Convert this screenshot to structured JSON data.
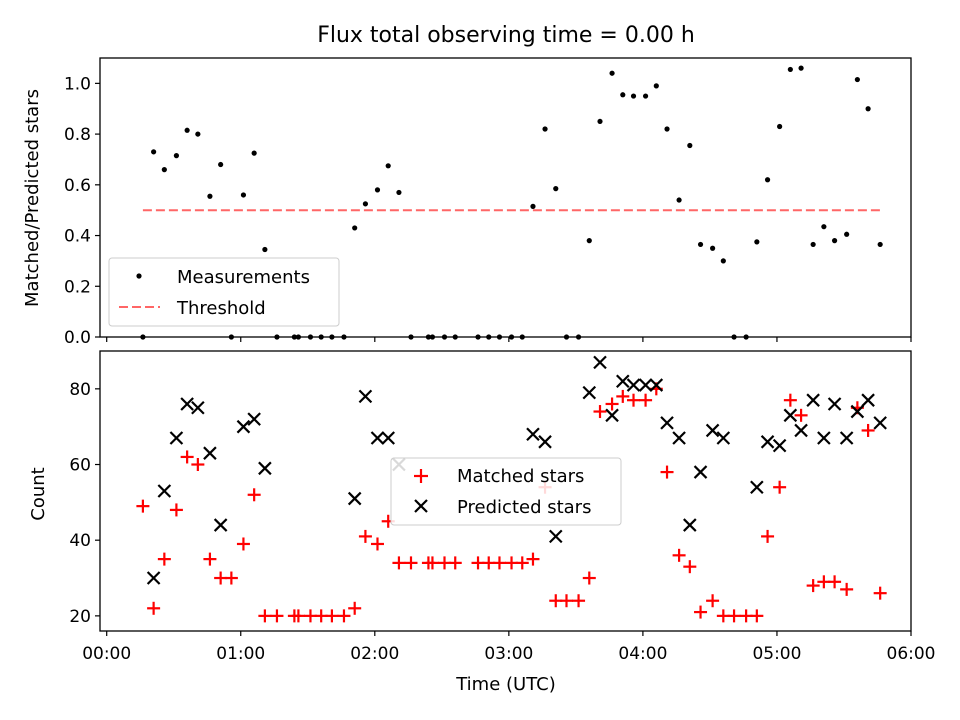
{
  "chart_data": [
    {
      "type": "scatter",
      "title": "Flux total observing time = 0.00 h",
      "xlabel": "",
      "ylabel": "Matched/Predicted stars",
      "xlim": [
        -0.05,
        6.0
      ],
      "ylim": [
        0,
        1.1
      ],
      "x_ticks": [
        0,
        1,
        2,
        3,
        4,
        5,
        6
      ],
      "y_ticks": [
        0.0,
        0.2,
        0.4,
        0.6,
        0.8,
        1.0
      ],
      "y_tick_labels": [
        "0.0",
        "0.2",
        "0.4",
        "0.6",
        "0.8",
        "1.0"
      ],
      "legend": {
        "position": "lower-left",
        "entries": [
          "Measurements",
          "Threshold"
        ]
      },
      "series": [
        {
          "name": "Measurements",
          "style": "dot",
          "color": "#000000",
          "points": [
            [
              0.27,
              0.0
            ],
            [
              0.35,
              0.73
            ],
            [
              0.43,
              0.66
            ],
            [
              0.52,
              0.715
            ],
            [
              0.6,
              0.815
            ],
            [
              0.68,
              0.8
            ],
            [
              0.77,
              0.555
            ],
            [
              0.85,
              0.68
            ],
            [
              0.93,
              0.0
            ],
            [
              1.02,
              0.56
            ],
            [
              1.1,
              0.725
            ],
            [
              1.18,
              0.345
            ],
            [
              1.27,
              0.0
            ],
            [
              1.4,
              0.0
            ],
            [
              1.43,
              0.0
            ],
            [
              1.52,
              0.0
            ],
            [
              1.6,
              0.0
            ],
            [
              1.68,
              0.0
            ],
            [
              1.77,
              0.0
            ],
            [
              1.85,
              0.43
            ],
            [
              1.93,
              0.525
            ],
            [
              2.02,
              0.58
            ],
            [
              2.1,
              0.675
            ],
            [
              2.18,
              0.57
            ],
            [
              2.27,
              0.0
            ],
            [
              2.4,
              0.0
            ],
            [
              2.43,
              0.0
            ],
            [
              2.52,
              0.0
            ],
            [
              2.6,
              0.0
            ],
            [
              2.77,
              0.0
            ],
            [
              2.85,
              0.0
            ],
            [
              2.93,
              0.0
            ],
            [
              3.02,
              0.0
            ],
            [
              3.1,
              0.0
            ],
            [
              3.18,
              0.515
            ],
            [
              3.27,
              0.82
            ],
            [
              3.35,
              0.585
            ],
            [
              3.43,
              0.0
            ],
            [
              3.52,
              0.0
            ],
            [
              3.6,
              0.38
            ],
            [
              3.68,
              0.85
            ],
            [
              3.77,
              1.04
            ],
            [
              3.85,
              0.955
            ],
            [
              3.93,
              0.95
            ],
            [
              4.02,
              0.95
            ],
            [
              4.1,
              0.99
            ],
            [
              4.18,
              0.82
            ],
            [
              4.27,
              0.54
            ],
            [
              4.35,
              0.755
            ],
            [
              4.43,
              0.365
            ],
            [
              4.52,
              0.35
            ],
            [
              4.6,
              0.3
            ],
            [
              4.68,
              0.0
            ],
            [
              4.77,
              0.0
            ],
            [
              4.85,
              0.375
            ],
            [
              4.93,
              0.62
            ],
            [
              5.02,
              0.83
            ],
            [
              5.1,
              1.055
            ],
            [
              5.18,
              1.06
            ],
            [
              5.27,
              0.365
            ],
            [
              5.35,
              0.435
            ],
            [
              5.43,
              0.38
            ],
            [
              5.52,
              0.405
            ],
            [
              5.6,
              1.015
            ],
            [
              5.68,
              0.9
            ],
            [
              5.77,
              0.365
            ]
          ]
        },
        {
          "name": "Threshold",
          "style": "dashed-line",
          "color": "#ff6666",
          "points": [
            [
              0.27,
              0.5
            ],
            [
              5.77,
              0.5
            ]
          ]
        }
      ]
    },
    {
      "type": "scatter",
      "title": "",
      "xlabel": "Time (UTC)",
      "ylabel": "Count",
      "xlim": [
        -0.05,
        6.0
      ],
      "ylim": [
        16,
        90
      ],
      "x_ticks": [
        0,
        1,
        2,
        3,
        4,
        5,
        6
      ],
      "x_tick_labels": [
        "00:00",
        "01:00",
        "02:00",
        "03:00",
        "04:00",
        "05:00",
        "06:00"
      ],
      "y_ticks": [
        20,
        40,
        60,
        80
      ],
      "y_tick_labels": [
        "20",
        "40",
        "60",
        "80"
      ],
      "legend": {
        "position": "center",
        "entries": [
          "Matched stars",
          "Predicted stars"
        ]
      },
      "series": [
        {
          "name": "Matched stars",
          "style": "plus",
          "color": "#ff0000",
          "points": [
            [
              0.27,
              49
            ],
            [
              0.35,
              22
            ],
            [
              0.43,
              35
            ],
            [
              0.52,
              48
            ],
            [
              0.6,
              62
            ],
            [
              0.68,
              60
            ],
            [
              0.77,
              35
            ],
            [
              0.85,
              30
            ],
            [
              0.93,
              30
            ],
            [
              1.02,
              39
            ],
            [
              1.1,
              52
            ],
            [
              1.18,
              20
            ],
            [
              1.27,
              20
            ],
            [
              1.4,
              20
            ],
            [
              1.43,
              20
            ],
            [
              1.52,
              20
            ],
            [
              1.6,
              20
            ],
            [
              1.68,
              20
            ],
            [
              1.77,
              20
            ],
            [
              1.85,
              22
            ],
            [
              1.93,
              41
            ],
            [
              2.02,
              39
            ],
            [
              2.1,
              45
            ],
            [
              2.18,
              34
            ],
            [
              2.27,
              34
            ],
            [
              2.4,
              34
            ],
            [
              2.43,
              34
            ],
            [
              2.52,
              34
            ],
            [
              2.6,
              34
            ],
            [
              2.77,
              34
            ],
            [
              2.85,
              34
            ],
            [
              2.93,
              34
            ],
            [
              3.02,
              34
            ],
            [
              3.1,
              34
            ],
            [
              3.18,
              35
            ],
            [
              3.27,
              54
            ],
            [
              3.35,
              24
            ],
            [
              3.43,
              24
            ],
            [
              3.52,
              24
            ],
            [
              3.6,
              30
            ],
            [
              3.68,
              74
            ],
            [
              3.77,
              76
            ],
            [
              3.85,
              78
            ],
            [
              3.93,
              77
            ],
            [
              4.02,
              77
            ],
            [
              4.1,
              80
            ],
            [
              4.18,
              58
            ],
            [
              4.27,
              36
            ],
            [
              4.35,
              33
            ],
            [
              4.43,
              21
            ],
            [
              4.52,
              24
            ],
            [
              4.6,
              20
            ],
            [
              4.68,
              20
            ],
            [
              4.77,
              20
            ],
            [
              4.85,
              20
            ],
            [
              4.93,
              41
            ],
            [
              5.02,
              54
            ],
            [
              5.1,
              77
            ],
            [
              5.18,
              73
            ],
            [
              5.27,
              28
            ],
            [
              5.35,
              29
            ],
            [
              5.43,
              29
            ],
            [
              5.52,
              27
            ],
            [
              5.6,
              75
            ],
            [
              5.68,
              69
            ],
            [
              5.77,
              26
            ]
          ]
        },
        {
          "name": "Predicted stars",
          "style": "x",
          "color": "#000000",
          "points": [
            [
              0.35,
              30
            ],
            [
              0.43,
              53
            ],
            [
              0.52,
              67
            ],
            [
              0.6,
              76
            ],
            [
              0.68,
              75
            ],
            [
              0.77,
              63
            ],
            [
              0.85,
              44
            ],
            [
              1.02,
              70
            ],
            [
              1.1,
              72
            ],
            [
              1.18,
              59
            ],
            [
              1.85,
              51
            ],
            [
              1.93,
              78
            ],
            [
              2.02,
              67
            ],
            [
              2.1,
              67
            ],
            [
              2.18,
              60
            ],
            [
              3.18,
              68
            ],
            [
              3.27,
              66
            ],
            [
              3.35,
              41
            ],
            [
              3.6,
              79
            ],
            [
              3.68,
              87
            ],
            [
              3.77,
              73
            ],
            [
              3.85,
              82
            ],
            [
              3.93,
              81
            ],
            [
              4.02,
              81
            ],
            [
              4.1,
              81
            ],
            [
              4.18,
              71
            ],
            [
              4.27,
              67
            ],
            [
              4.35,
              44
            ],
            [
              4.43,
              58
            ],
            [
              4.52,
              69
            ],
            [
              4.6,
              67
            ],
            [
              4.85,
              54
            ],
            [
              4.93,
              66
            ],
            [
              5.02,
              65
            ],
            [
              5.1,
              73
            ],
            [
              5.18,
              69
            ],
            [
              5.27,
              77
            ],
            [
              5.35,
              67
            ],
            [
              5.43,
              76
            ],
            [
              5.52,
              67
            ],
            [
              5.6,
              74
            ],
            [
              5.68,
              77
            ],
            [
              5.77,
              71
            ]
          ]
        }
      ]
    }
  ]
}
